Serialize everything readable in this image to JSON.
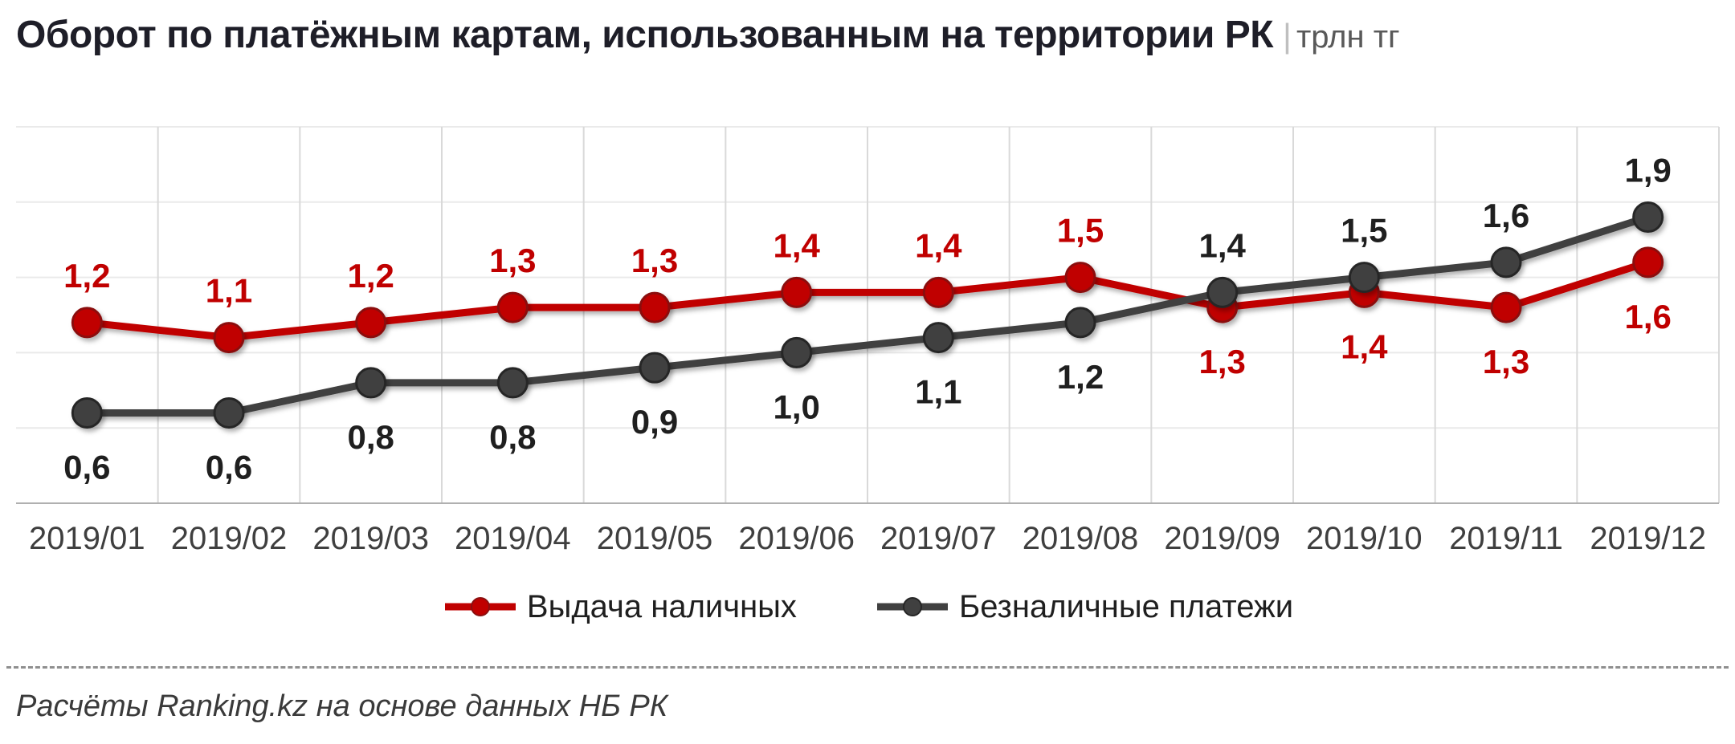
{
  "header": {
    "title": "Оборот по платёжным картам, использованным на территории РК",
    "separator": "|",
    "unit": "трлн тг"
  },
  "chart_data": {
    "type": "line",
    "categories": [
      "2019/01",
      "2019/02",
      "2019/03",
      "2019/04",
      "2019/05",
      "2019/06",
      "2019/07",
      "2019/08",
      "2019/09",
      "2019/10",
      "2019/11",
      "2019/12"
    ],
    "series": [
      {
        "name": "Выдача наличных",
        "color": "#c00000",
        "marker_edge": "#8b1010",
        "label_color": "#c00000",
        "values": [
          1.2,
          1.1,
          1.2,
          1.3,
          1.3,
          1.4,
          1.4,
          1.5,
          1.3,
          1.4,
          1.3,
          1.6
        ]
      },
      {
        "name": "Безналичные платежи",
        "color": "#404040",
        "marker_edge": "#262626",
        "label_color": "#1f1f1f",
        "values": [
          0.6,
          0.6,
          0.8,
          0.8,
          0.9,
          1.0,
          1.1,
          1.2,
          1.4,
          1.5,
          1.6,
          1.9
        ]
      }
    ],
    "ylim": [
      0,
      2.5
    ],
    "grid_step": 0.5,
    "grid": "on",
    "legend_position": "bottom",
    "value_label_format": "comma-decimal",
    "markers": true
  },
  "footer": {
    "source_note": "Расчёты Ranking.kz на основе данных НБ РК"
  }
}
